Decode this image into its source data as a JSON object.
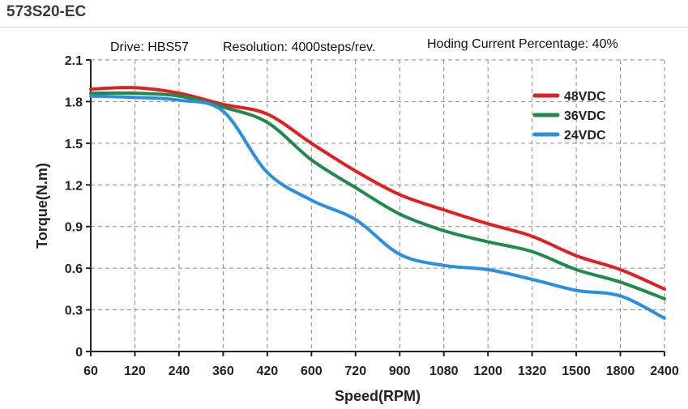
{
  "header": {
    "title": "573S20-EC"
  },
  "chart_data": {
    "type": "line",
    "title": "",
    "spec_labels": {
      "drive": "Drive: HBS57",
      "resolution": "Resolution: 4000steps/rev.",
      "holding": "Hoding Current Percentage: 40%"
    },
    "xlabel": "Speed(RPM)",
    "ylabel": "Torque(N.m)",
    "categories": [
      "60",
      "120",
      "240",
      "360",
      "420",
      "600",
      "720",
      "900",
      "1080",
      "1200",
      "1320",
      "1500",
      "1800",
      "2400"
    ],
    "x_scale": "categorical-equal-spacing",
    "ylim": [
      0,
      2.1
    ],
    "yticks": [
      "0",
      "0.3",
      "0.6",
      "0.9",
      "1.2",
      "1.5",
      "1.8",
      "2.1"
    ],
    "ytick_values": [
      0,
      0.3,
      0.6,
      0.9,
      1.2,
      1.5,
      1.8,
      2.1
    ],
    "grid": true,
    "legend_position": "top-right",
    "series": [
      {
        "name": "48VDC",
        "color": "#e02020",
        "values": [
          1.89,
          1.9,
          1.86,
          1.78,
          1.71,
          1.5,
          1.3,
          1.13,
          1.02,
          0.92,
          0.83,
          0.69,
          0.59,
          0.45
        ]
      },
      {
        "name": "36VDC",
        "color": "#1f8a4c",
        "values": [
          1.86,
          1.86,
          1.84,
          1.76,
          1.65,
          1.38,
          1.18,
          0.99,
          0.87,
          0.79,
          0.72,
          0.59,
          0.5,
          0.38
        ]
      },
      {
        "name": "24VDC",
        "color": "#2a8fe0",
        "values": [
          1.84,
          1.83,
          1.81,
          1.73,
          1.29,
          1.09,
          0.95,
          0.7,
          0.62,
          0.59,
          0.52,
          0.44,
          0.4,
          0.24
        ]
      }
    ]
  }
}
